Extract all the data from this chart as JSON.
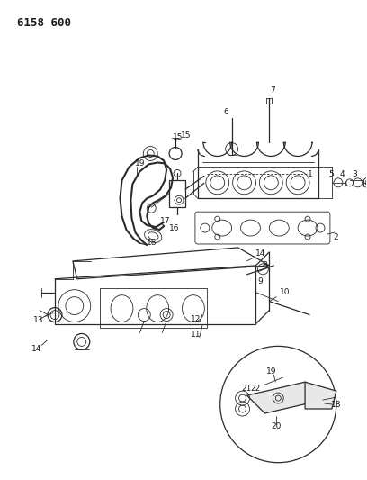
{
  "title": "6158 600",
  "bg_color": "#ffffff",
  "line_color": "#2a2a2a",
  "label_color": "#1a1a1a",
  "title_fontsize": 9,
  "label_fontsize": 6.5
}
